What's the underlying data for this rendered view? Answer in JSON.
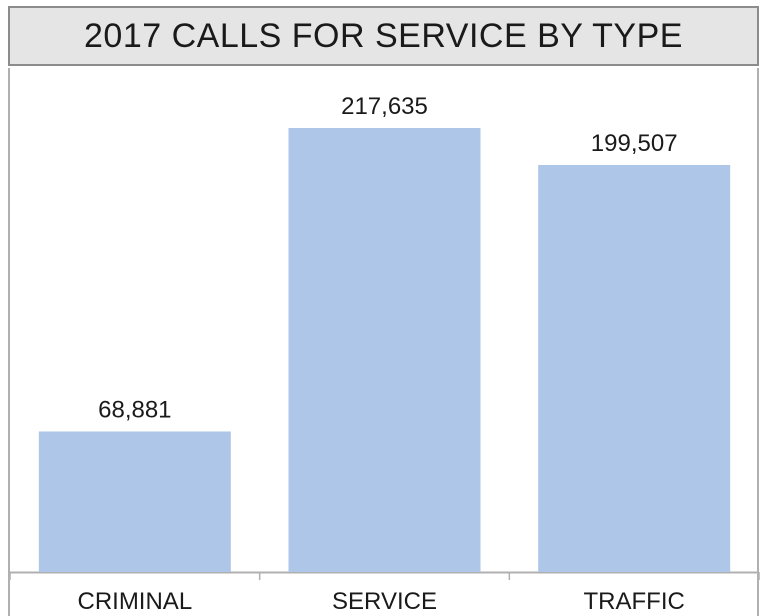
{
  "chart_data": {
    "type": "bar",
    "title": "2017 CALLS FOR SERVICE BY TYPE",
    "categories": [
      "CRIMINAL",
      "SERVICE",
      "TRAFFIC"
    ],
    "values": [
      68881,
      217635,
      199507
    ],
    "value_labels": [
      "68,881",
      "217,635",
      "199,507"
    ],
    "xlabel": "",
    "ylabel": "",
    "ylim": [
      0,
      240000
    ],
    "grid": false,
    "legend": "none",
    "colors": {
      "bar": "#aec6e8",
      "axis": "#b0b0b0",
      "text": "#1a1a1a",
      "title_bg": "#e5e5e5",
      "title_border": "#8c8c8c"
    }
  }
}
